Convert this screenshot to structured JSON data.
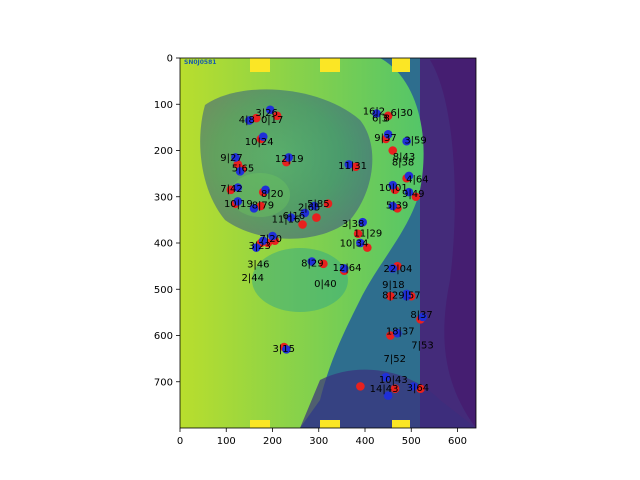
{
  "chart_data": {
    "type": "scatter",
    "title": "",
    "xlabel": "",
    "ylabel": "",
    "xlim": [
      0,
      640
    ],
    "ylim": [
      800,
      0
    ],
    "y_inverted": true,
    "image_extent": [
      0,
      640,
      800,
      0
    ],
    "xticks": [
      0,
      100,
      200,
      300,
      400,
      500,
      600
    ],
    "yticks": [
      0,
      100,
      200,
      300,
      400,
      500,
      600,
      700
    ],
    "grid": false,
    "legend": "none",
    "background_image": "lateral cephalometric x-ray, viridis colormap",
    "image_stamp": "SN0J0581",
    "colors": {
      "red": "#e8211e",
      "blue": "#1f2fd8",
      "stamp": "#1a5ea8"
    },
    "series": [
      {
        "color": "red",
        "x": [
          210,
          165,
          450,
          175,
          445,
          460,
          125,
          135,
          110,
          230,
          380,
          490,
          465,
          180,
          510,
          120,
          190,
          470,
          175,
          295,
          320,
          265,
          385,
          205,
          405,
          175,
          470,
          310,
          355,
          225,
          500,
          520,
          455,
          390,
          520,
          465,
          455
        ],
        "y": [
          125,
          130,
          125,
          175,
          175,
          200,
          230,
          240,
          285,
          225,
          235,
          260,
          285,
          290,
          300,
          315,
          400,
          325,
          320,
          345,
          315,
          360,
          380,
          395,
          410,
          400,
          450,
          445,
          460,
          625,
          515,
          565,
          600,
          710,
          715,
          715,
          515
        ]
      },
      {
        "color": "blue",
        "x": [
          195,
          150,
          425,
          180,
          450,
          490,
          120,
          130,
          125,
          235,
          365,
          495,
          460,
          185,
          495,
          125,
          180,
          460,
          160,
          270,
          290,
          240,
          395,
          200,
          390,
          165,
          460,
          285,
          355,
          230,
          490,
          525,
          470,
          445,
          505,
          450,
          490
        ],
        "y": [
          112,
          135,
          120,
          170,
          165,
          180,
          215,
          245,
          280,
          215,
          230,
          255,
          275,
          285,
          290,
          310,
          395,
          320,
          325,
          335,
          320,
          345,
          355,
          385,
          400,
          410,
          455,
          440,
          455,
          630,
          510,
          560,
          595,
          690,
          710,
          730,
          515
        ]
      }
    ],
    "labels": [
      {
        "text": "3|26",
        "x": 163,
        "y": 118
      },
      {
        "text": "4|8",
        "x": 127,
        "y": 133
      },
      {
        "text": "0|17",
        "x": 175,
        "y": 133
      },
      {
        "text": "16|2",
        "x": 395,
        "y": 115
      },
      {
        "text": "6|3",
        "x": 415,
        "y": 130
      },
      {
        "text": "8",
        "x": 440,
        "y": 130
      },
      {
        "text": "6|30",
        "x": 455,
        "y": 118
      },
      {
        "text": "10|24",
        "x": 140,
        "y": 180
      },
      {
        "text": "9|37",
        "x": 420,
        "y": 172
      },
      {
        "text": "3|59",
        "x": 485,
        "y": 177
      },
      {
        "text": "9|27",
        "x": 87,
        "y": 215
      },
      {
        "text": "12|19",
        "x": 205,
        "y": 217
      },
      {
        "text": "11|31",
        "x": 342,
        "y": 232
      },
      {
        "text": "8|43",
        "x": 460,
        "y": 213
      },
      {
        "text": "8|38",
        "x": 458,
        "y": 225
      },
      {
        "text": "5|65",
        "x": 112,
        "y": 238
      },
      {
        "text": "4|64",
        "x": 489,
        "y": 262
      },
      {
        "text": "7|42",
        "x": 87,
        "y": 282
      },
      {
        "text": "10|01",
        "x": 430,
        "y": 280
      },
      {
        "text": "8|20",
        "x": 175,
        "y": 293
      },
      {
        "text": "9|49",
        "x": 480,
        "y": 293
      },
      {
        "text": "10|19",
        "x": 95,
        "y": 315
      },
      {
        "text": "8|79",
        "x": 155,
        "y": 318
      },
      {
        "text": "5|39",
        "x": 445,
        "y": 318
      },
      {
        "text": "5|85",
        "x": 275,
        "y": 315
      },
      {
        "text": "2|65",
        "x": 255,
        "y": 322
      },
      {
        "text": "6|16",
        "x": 222,
        "y": 340
      },
      {
        "text": "11|16",
        "x": 198,
        "y": 348
      },
      {
        "text": "3|38",
        "x": 350,
        "y": 358
      },
      {
        "text": "11|29",
        "x": 375,
        "y": 378
      },
      {
        "text": "7|20",
        "x": 172,
        "y": 390
      },
      {
        "text": "10|34",
        "x": 345,
        "y": 400
      },
      {
        "text": "3|23",
        "x": 148,
        "y": 405
      },
      {
        "text": "3|46",
        "x": 145,
        "y": 445
      },
      {
        "text": "8|29",
        "x": 262,
        "y": 443
      },
      {
        "text": "12|64",
        "x": 330,
        "y": 453
      },
      {
        "text": "22|04",
        "x": 440,
        "y": 455
      },
      {
        "text": "2|44",
        "x": 133,
        "y": 475
      },
      {
        "text": "0|40",
        "x": 290,
        "y": 488
      },
      {
        "text": "9|18",
        "x": 437,
        "y": 490
      },
      {
        "text": "8|29|57",
        "x": 437,
        "y": 512
      },
      {
        "text": "8|37",
        "x": 498,
        "y": 555
      },
      {
        "text": "18|37",
        "x": 445,
        "y": 590
      },
      {
        "text": "7|53",
        "x": 500,
        "y": 620
      },
      {
        "text": "3|15",
        "x": 200,
        "y": 628
      },
      {
        "text": "7|52",
        "x": 440,
        "y": 650
      },
      {
        "text": "10|43",
        "x": 430,
        "y": 695
      },
      {
        "text": "14|43",
        "x": 410,
        "y": 715
      },
      {
        "text": "3|64",
        "x": 490,
        "y": 712
      }
    ]
  }
}
